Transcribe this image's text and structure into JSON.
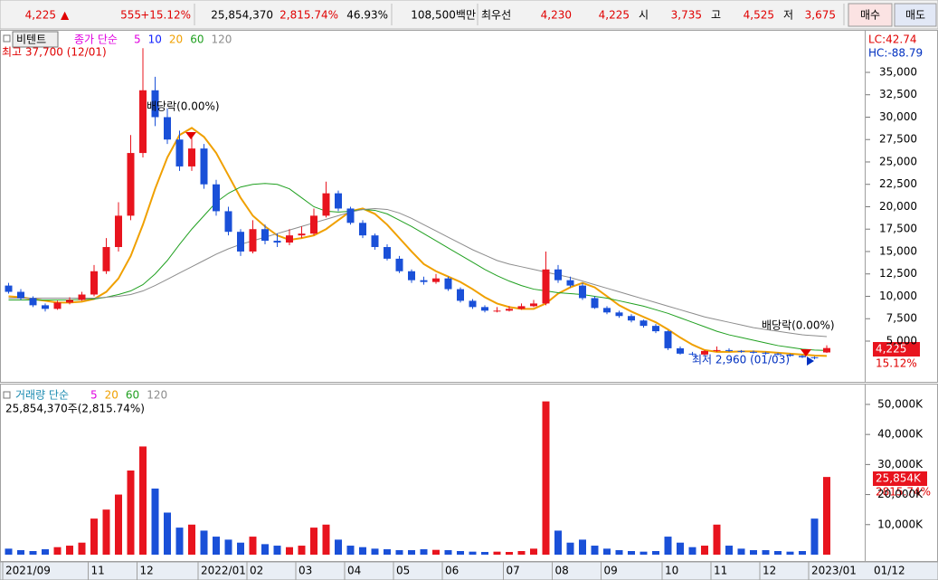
{
  "toolbar": {
    "price": "4,225",
    "arrow": "▲",
    "change": "555",
    "change_pct": "+15.12%",
    "volume": "25,854,370",
    "volume_ratio": "2,815.74%",
    "turnover": "46.93%",
    "market_cap": "108,500백만",
    "best_label": "최우선",
    "best_ask": "4,230",
    "best_bid": "4,225",
    "open_label": "시",
    "open": "3,735",
    "high_label": "고",
    "high": "4,525",
    "low_label": "저",
    "low": "3,675",
    "buy": "매수",
    "sell": "매도"
  },
  "chart_data": [
    {
      "type": "candlestick",
      "name": "비텐트",
      "legend_title": "종가 단순",
      "up_color": "#e8141e",
      "down_color": "#1a50d8",
      "lc": "LC:42.74",
      "hc": "HC:-88.79",
      "last_label": "4,225",
      "last_pct": "15.12%",
      "annotations": [
        {
          "text": "최고 37,700 (12/01)",
          "color": "#e00000"
        },
        {
          "text": "배당락(0.00%)",
          "color": "#000000"
        },
        {
          "text": "배당락(0.00%)",
          "color": "#000000"
        },
        {
          "text": "최저 2,960 (01/03)",
          "color": "#0030c0"
        }
      ],
      "ylim": [
        2170,
        39240
      ],
      "yticks": [
        {
          "value": 5000,
          "label": "5,000"
        },
        {
          "value": 7500,
          "label": "7,500"
        },
        {
          "value": 10000,
          "label": "10,000"
        },
        {
          "value": 12500,
          "label": "12,500"
        },
        {
          "value": 15000,
          "label": "15,000"
        },
        {
          "value": 17500,
          "label": "17,500"
        },
        {
          "value": 20000,
          "label": "20,000"
        },
        {
          "value": 22500,
          "label": "22,500"
        },
        {
          "value": 25000,
          "label": "25,000"
        },
        {
          "value": 27500,
          "label": "27,500"
        },
        {
          "value": 30000,
          "label": "30,000"
        },
        {
          "value": 32500,
          "label": "32,500"
        },
        {
          "value": 35000,
          "label": "35,000"
        }
      ],
      "open": [
        11200,
        10500,
        9800,
        9000,
        8600,
        9300,
        9600,
        10200,
        12800,
        15500,
        19000,
        26000,
        33000,
        30000,
        27500,
        24500,
        26500,
        22500,
        19500,
        17200,
        15000,
        17500,
        16200,
        16000,
        16800,
        17000,
        19000,
        21500,
        19800,
        18200,
        16800,
        15500,
        14200,
        12800,
        11800,
        11600,
        12000,
        10800,
        9500,
        8800,
        8400,
        8400,
        8600,
        8900,
        9200,
        13000,
        11800,
        11200,
        9800,
        8700,
        8200,
        7800,
        7300,
        6700,
        6100,
        4200,
        3600,
        3500,
        3900,
        4000,
        3900,
        3800,
        3700,
        3600,
        3500,
        3350,
        3200,
        3735
      ],
      "high": [
        11500,
        10800,
        10000,
        9200,
        9500,
        9900,
        10500,
        13500,
        16500,
        20500,
        28000,
        37700,
        34500,
        31000,
        28500,
        28000,
        27000,
        23000,
        20000,
        17500,
        18500,
        18000,
        17000,
        17500,
        17800,
        19800,
        22800,
        21800,
        20000,
        18500,
        17000,
        15800,
        14500,
        13000,
        12200,
        12500,
        12200,
        11000,
        9700,
        9000,
        8800,
        8900,
        9200,
        9600,
        15000,
        13500,
        12200,
        11500,
        10000,
        8900,
        8400,
        8000,
        7400,
        6900,
        6200,
        4400,
        3800,
        4000,
        4400,
        4200,
        4000,
        3950,
        3800,
        3700,
        3600,
        3450,
        3300,
        4525
      ],
      "low": [
        10300,
        9600,
        8800,
        8300,
        8500,
        9100,
        9500,
        10000,
        12500,
        15000,
        18500,
        25500,
        29000,
        27000,
        24000,
        24000,
        22000,
        19000,
        16800,
        14500,
        14800,
        15800,
        15500,
        15700,
        16500,
        16800,
        18800,
        19500,
        18000,
        16500,
        15200,
        14000,
        12600,
        11500,
        11300,
        11400,
        10600,
        9300,
        8600,
        8200,
        8200,
        8300,
        8500,
        8800,
        9000,
        11500,
        11000,
        9600,
        8600,
        8000,
        7600,
        7100,
        6500,
        5900,
        4000,
        3500,
        3400,
        3400,
        3800,
        3800,
        3700,
        3600,
        3500,
        3400,
        3250,
        3100,
        2960,
        3675
      ],
      "close": [
        10500,
        9800,
        9000,
        8600,
        9300,
        9600,
        10200,
        12800,
        15500,
        19000,
        26000,
        33000,
        30000,
        27500,
        24500,
        26500,
        22500,
        19500,
        17200,
        15000,
        17500,
        16200,
        16000,
        16800,
        17000,
        19000,
        21500,
        19800,
        18200,
        16800,
        15500,
        14200,
        12800,
        11800,
        11600,
        12000,
        10800,
        9500,
        8800,
        8400,
        8400,
        8600,
        8900,
        9200,
        13000,
        11800,
        11200,
        9800,
        8700,
        8200,
        7800,
        7300,
        6700,
        6100,
        4200,
        3600,
        3500,
        3900,
        4000,
        3900,
        3800,
        3700,
        3600,
        3500,
        3350,
        3200,
        3100,
        4225
      ],
      "series": [
        {
          "name": "5",
          "color": "#e000e0"
        },
        {
          "name": "10",
          "color": "#1020ff"
        },
        {
          "name": "20",
          "color": "#f0a000",
          "values": [
            10000,
            9900,
            9700,
            9500,
            9300,
            9300,
            9400,
            9700,
            10500,
            12000,
            14500,
            18000,
            22000,
            25500,
            28000,
            28800,
            27800,
            26000,
            23500,
            21000,
            19000,
            17800,
            16800,
            16300,
            16500,
            16800,
            17500,
            18500,
            19500,
            19800,
            19200,
            18000,
            16500,
            15000,
            13600,
            12800,
            12200,
            11600,
            10800,
            9900,
            9200,
            8800,
            8600,
            8600,
            9200,
            10300,
            11000,
            11500,
            11000,
            10000,
            9000,
            8300,
            7700,
            7100,
            6300,
            5400,
            4600,
            4000,
            3800,
            3800,
            3850,
            3850,
            3800,
            3700,
            3600,
            3500,
            3400,
            3350
          ]
        },
        {
          "name": "60",
          "color": "#20a020",
          "values": [
            9600,
            9600,
            9600,
            9600,
            9600,
            9600,
            9650,
            9700,
            9900,
            10200,
            10600,
            11300,
            12500,
            14000,
            15800,
            17500,
            19000,
            20500,
            21500,
            22200,
            22500,
            22600,
            22500,
            22000,
            21000,
            20000,
            19500,
            19400,
            19500,
            19700,
            19600,
            19200,
            18500,
            17800,
            17000,
            16200,
            15400,
            14600,
            13800,
            13000,
            12300,
            11700,
            11200,
            10800,
            10600,
            10400,
            10300,
            10200,
            10000,
            9800,
            9500,
            9200,
            8900,
            8500,
            8100,
            7600,
            7100,
            6600,
            6100,
            5700,
            5400,
            5100,
            4800,
            4500,
            4300,
            4100,
            4000,
            3950
          ]
        },
        {
          "name": "120",
          "color": "#8c8c8c",
          "values": [
            9800,
            9800,
            9800,
            9800,
            9800,
            9800,
            9800,
            9800,
            9900,
            10000,
            10200,
            10600,
            11200,
            11900,
            12600,
            13300,
            14000,
            14700,
            15300,
            15800,
            16200,
            16600,
            17000,
            17400,
            17800,
            18200,
            18600,
            19000,
            19400,
            19700,
            19800,
            19700,
            19300,
            18700,
            18000,
            17300,
            16600,
            15900,
            15200,
            14600,
            14000,
            13600,
            13300,
            13000,
            12700,
            12400,
            12100,
            11700,
            11300,
            10900,
            10500,
            10100,
            9700,
            9300,
            8900,
            8500,
            8100,
            7700,
            7400,
            7100,
            6800,
            6500,
            6300,
            6100,
            5900,
            5700,
            5600,
            5500
          ]
        }
      ]
    },
    {
      "type": "bar",
      "legend_title": "거래량 단순",
      "info": "25,854,370주(2,815.74%)",
      "last_label": "25,854K",
      "last_pct": "2815.74%",
      "end_label": "01/12",
      "series": [
        {
          "name": "5",
          "color": "#e000e0"
        },
        {
          "name": "20",
          "color": "#f0a000"
        },
        {
          "name": "60",
          "color": "#20a020"
        },
        {
          "name": "120",
          "color": "#8c8c8c"
        }
      ],
      "ylim": [
        0,
        55700
      ],
      "yticks": [
        {
          "value": 10000,
          "label": "10,000K"
        },
        {
          "value": 20000,
          "label": "20,000K"
        },
        {
          "value": 30000,
          "label": "30,000K"
        },
        {
          "value": 40000,
          "label": "40,000K"
        },
        {
          "value": 50000,
          "label": "50,000K"
        }
      ],
      "categories": [
        "2021/09",
        null,
        null,
        null,
        null,
        null,
        null,
        "11",
        null,
        null,
        null,
        "12",
        null,
        null,
        null,
        null,
        "2022/01",
        null,
        null,
        null,
        "02",
        null,
        null,
        null,
        "03",
        null,
        null,
        null,
        "04",
        null,
        null,
        null,
        "05",
        null,
        null,
        null,
        "06",
        null,
        null,
        null,
        null,
        "07",
        null,
        null,
        null,
        "08",
        null,
        null,
        null,
        "09",
        null,
        null,
        null,
        null,
        "10",
        null,
        null,
        null,
        "11",
        null,
        null,
        null,
        "12",
        null,
        null,
        null,
        "2023/01",
        null
      ],
      "values": [
        2000,
        1500,
        1200,
        1800,
        2500,
        3000,
        4000,
        12000,
        15000,
        20000,
        28000,
        36000,
        22000,
        14000,
        9000,
        10000,
        8000,
        6000,
        5000,
        4000,
        6000,
        3500,
        3000,
        2500,
        3000,
        9000,
        10000,
        5000,
        3000,
        2500,
        2000,
        1800,
        1500,
        1500,
        1800,
        1600,
        1500,
        1200,
        1000,
        900,
        1000,
        900,
        1200,
        2000,
        51000,
        8000,
        4000,
        5000,
        3000,
        2000,
        1500,
        1200,
        1000,
        1200,
        6000,
        4000,
        2500,
        3000,
        10000,
        3000,
        2000,
        1500,
        1500,
        1200,
        1000,
        1200,
        12000,
        25854
      ]
    }
  ]
}
